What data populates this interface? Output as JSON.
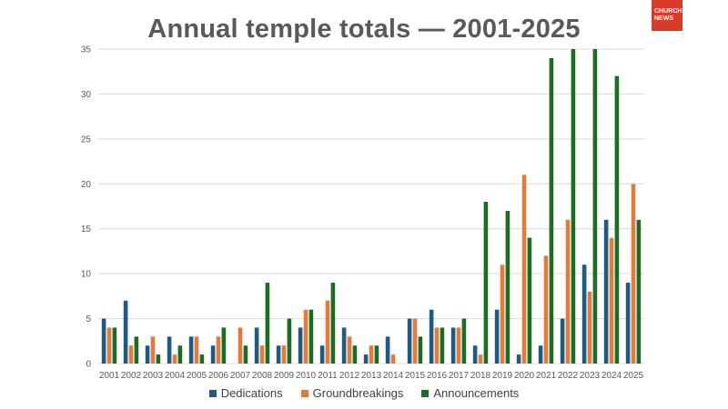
{
  "logo": {
    "line1": "CHURCH",
    "line2": "NEWS"
  },
  "chart_data": {
    "type": "bar",
    "title": "Annual temple totals — 2001-2025",
    "xlabel": "",
    "ylabel": "",
    "ylim": [
      0,
      35
    ],
    "yticks": [
      0,
      5,
      10,
      15,
      20,
      25,
      30,
      35
    ],
    "grid": true,
    "legend_position": "bottom",
    "categories": [
      "2001",
      "2002",
      "2003",
      "2004",
      "2005",
      "2006",
      "2007",
      "2008",
      "2009",
      "2010",
      "2011",
      "2012",
      "2013",
      "2014",
      "2015",
      "2016",
      "2017",
      "2018",
      "2019",
      "2020",
      "2021",
      "2022",
      "2023",
      "2024",
      "2025"
    ],
    "series": [
      {
        "name": "Dedications",
        "color": "#1f5a85",
        "values": [
          5,
          7,
          2,
          3,
          3,
          2,
          0,
          4,
          2,
          4,
          2,
          4,
          1,
          3,
          5,
          6,
          4,
          2,
          6,
          1,
          2,
          5,
          11,
          16,
          9
        ]
      },
      {
        "name": "Groundbreakings",
        "color": "#e07b39",
        "values": [
          4,
          2,
          3,
          1,
          3,
          3,
          4,
          2,
          2,
          6,
          7,
          3,
          2,
          1,
          5,
          4,
          4,
          1,
          11,
          21,
          12,
          16,
          8,
          14,
          20
        ]
      },
      {
        "name": "Announcements",
        "color": "#1e6b23",
        "values": [
          4,
          3,
          1,
          2,
          1,
          4,
          2,
          9,
          5,
          6,
          9,
          2,
          2,
          0,
          3,
          4,
          5,
          18,
          17,
          14,
          34,
          35,
          35,
          32,
          16
        ]
      }
    ]
  }
}
